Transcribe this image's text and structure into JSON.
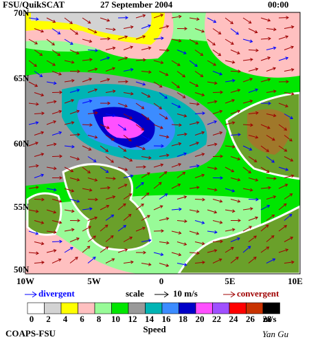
{
  "header": {
    "source": "FSU/QuikSCAT",
    "date": "27 September 2004",
    "time": "00:00"
  },
  "axes": {
    "lat_labels": [
      "70N",
      "65N",
      "60N",
      "55N",
      "50N"
    ],
    "lon_labels": [
      "10W",
      "5W",
      "0",
      "5E",
      "10E"
    ]
  },
  "legend": {
    "divergent": "divergent",
    "scale": "scale",
    "scale_value": "10 m/s",
    "convergent": "convergent"
  },
  "colorbar": {
    "ticks": [
      "0",
      "2",
      "4",
      "6",
      "8",
      "10",
      "12",
      "14",
      "16",
      "18",
      "20",
      "22",
      "24",
      "26",
      "28"
    ],
    "unit": "m/s",
    "title": "Speed",
    "colors": [
      "#ffffff",
      "#d3d3d3",
      "#ffff00",
      "#ffc0c0",
      "#98fb98",
      "#00e600",
      "#999999",
      "#00b4b4",
      "#3c8cff",
      "#0000c8",
      "#ff50ff",
      "#a050ff",
      "#ff0000",
      "#c83200",
      "#000000"
    ]
  },
  "footer": {
    "left": "COAPS-FSU",
    "right": "Yan Gu"
  }
}
